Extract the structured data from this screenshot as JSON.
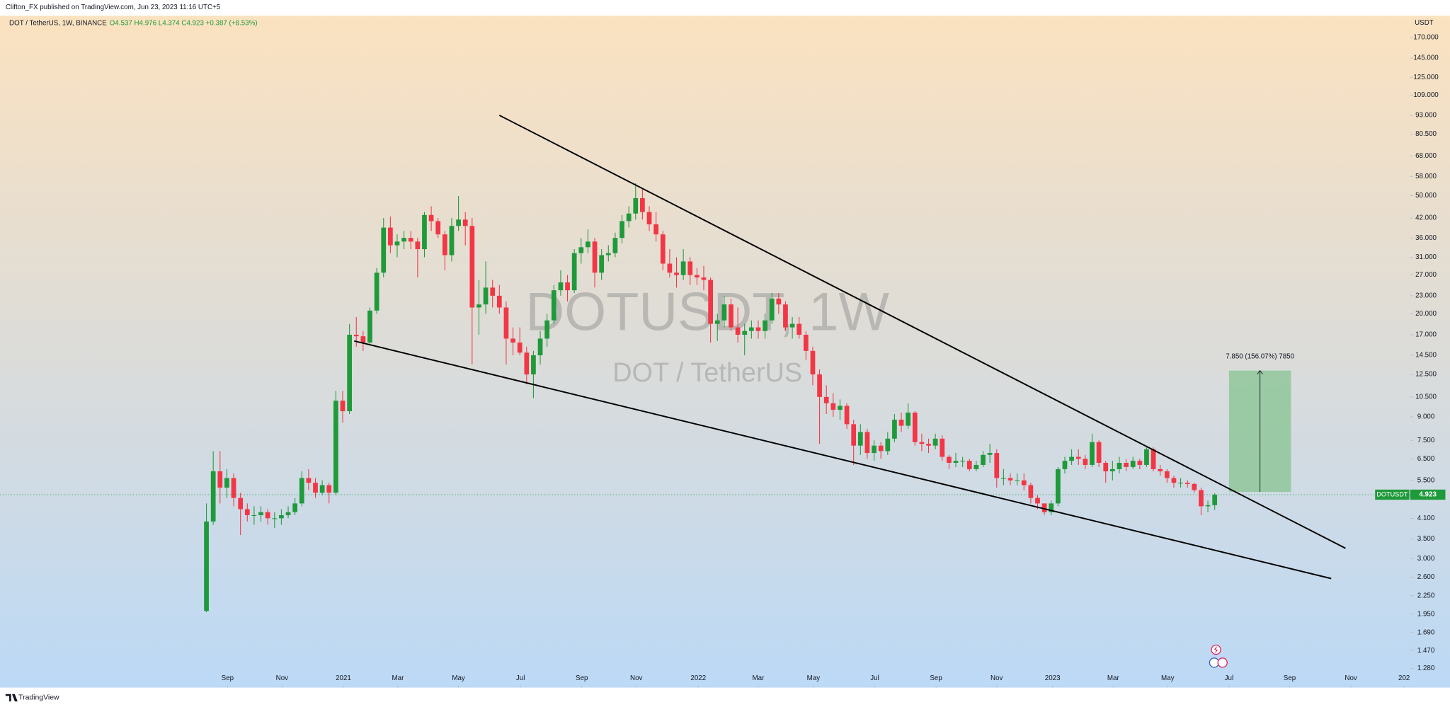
{
  "header": {
    "publisher": "Clifton_FX published on TradingView.com, Jun 23, 2023 11:16 UTC+5"
  },
  "chart_data": {
    "type": "candlestick",
    "title": "DOT / TetherUS, 1W, BINANCE",
    "legend_values": "O4.537 H4.976 L4.374 C4.923 +0.387 (+8.53%)",
    "watermark": "DOTUSDT, 1W",
    "watermark_subtitle": "DOT / TetherUS",
    "currency": "USDT",
    "symbol_tag": "DOTUSDT",
    "up_color": "#1f9a3b",
    "down_color": "#f23645",
    "log_scale": true,
    "grid": false,
    "open": [
      2.0,
      4.0,
      5.9,
      5.2,
      5.6,
      4.8,
      4.4,
      4.2,
      4.2,
      4.3,
      4.1,
      4.1,
      4.2,
      4.3,
      4.6,
      5.6,
      5.4,
      5.0,
      5.3,
      5.0,
      10.2,
      9.4,
      17.0,
      16.8,
      16.0,
      20.5,
      27.5,
      39.0,
      34.0,
      35.0,
      36.0,
      35.0,
      33.0,
      43.0,
      41.0,
      37.0,
      31.5,
      39.5,
      41.5,
      39.5,
      21.0,
      21.5,
      24.5,
      23.0,
      21.0,
      16.5,
      16.0,
      14.8,
      12.5,
      14.5,
      16.5,
      19.0,
      24.0,
      25.5,
      24.0,
      32.0,
      33.5,
      35.0,
      27.5,
      31.5,
      32.0,
      36.0,
      41.0,
      43.5,
      49.0,
      44.0,
      40.0,
      37.0,
      29.5,
      27.5,
      27.0,
      30.0,
      27.0,
      26.5,
      26.0,
      18.5,
      19.0,
      21.5,
      18.0,
      17.0,
      17.5,
      18.0,
      17.5,
      19.0,
      22.5,
      21.5,
      18.0,
      18.5,
      17.0,
      15.0,
      12.5,
      10.5,
      10.0,
      9.5,
      9.8,
      8.5,
      7.2,
      8.0,
      6.8,
      7.2,
      6.9,
      7.6,
      8.8,
      8.4,
      9.3,
      7.4,
      7.3,
      7.2,
      7.6,
      6.6,
      6.3,
      6.4,
      6.4,
      6.0,
      6.2,
      6.7,
      6.8,
      5.6,
      5.6,
      5.5,
      5.5,
      5.3,
      4.8,
      4.6,
      4.3,
      4.6,
      6.0,
      6.4,
      6.6,
      6.5,
      6.2,
      7.4,
      6.3,
      5.9,
      6.0,
      6.3,
      6.1,
      6.4,
      6.2,
      7.0,
      6.0,
      5.9,
      5.6,
      5.4,
      5.4,
      5.35,
      5.1,
      4.5,
      4.537
    ],
    "high": [
      4.6,
      6.9,
      6.9,
      6.0,
      5.8,
      5.0,
      4.6,
      4.5,
      4.5,
      4.4,
      4.3,
      4.4,
      4.5,
      4.8,
      5.9,
      6.0,
      5.6,
      5.5,
      5.4,
      11.0,
      11.0,
      18.5,
      19.5,
      17.5,
      21.0,
      28.5,
      42.0,
      42.5,
      37.0,
      38.0,
      38.0,
      36.0,
      44.0,
      46.0,
      42.0,
      38.0,
      42.0,
      49.8,
      44.0,
      42.0,
      26.0,
      30.0,
      26.0,
      25.0,
      22.0,
      18.0,
      18.0,
      15.5,
      15.0,
      17.5,
      20.0,
      25.0,
      28.0,
      27.0,
      33.0,
      36.0,
      38.5,
      36.0,
      33.0,
      34.0,
      37.5,
      43.0,
      46.0,
      55.0,
      53.0,
      46.0,
      44.0,
      38.0,
      33.0,
      31.0,
      33.0,
      31.0,
      28.5,
      29.0,
      26.5,
      20.0,
      23.0,
      22.5,
      21.0,
      18.5,
      19.0,
      19.0,
      20.0,
      23.5,
      23.5,
      22.0,
      19.5,
      19.5,
      17.5,
      15.5,
      13.0,
      11.5,
      10.8,
      10.3,
      10.0,
      8.8,
      8.5,
      8.2,
      7.5,
      7.4,
      8.0,
      9.2,
      9.3,
      10.0,
      9.4,
      7.9,
      7.6,
      7.9,
      7.8,
      6.7,
      6.8,
      6.6,
      6.5,
      6.4,
      6.9,
      7.3,
      7.0,
      6.0,
      5.8,
      5.8,
      5.8,
      5.4,
      4.9,
      4.6,
      4.7,
      6.1,
      6.6,
      7.0,
      7.0,
      6.7,
      7.9,
      7.5,
      6.4,
      6.4,
      6.6,
      6.5,
      6.6,
      6.5,
      7.2,
      7.1,
      6.2,
      6.0,
      5.7,
      5.6,
      5.5,
      5.4,
      5.2,
      4.7,
      4.976
    ],
    "low": [
      1.98,
      3.9,
      4.6,
      4.8,
      4.5,
      3.6,
      4.0,
      3.9,
      4.0,
      3.9,
      3.8,
      3.9,
      4.1,
      4.2,
      4.5,
      5.1,
      4.8,
      4.9,
      4.6,
      4.9,
      8.6,
      9.2,
      15.5,
      15.0,
      15.8,
      20.0,
      26.5,
      32.0,
      31.0,
      33.0,
      33.0,
      26.5,
      31.0,
      38.0,
      36.0,
      28.0,
      30.0,
      38.0,
      34.0,
      13.5,
      17.0,
      20.0,
      21.0,
      20.0,
      13.5,
      14.5,
      14.5,
      11.6,
      10.4,
      13.5,
      15.5,
      18.5,
      23.0,
      22.0,
      23.5,
      29.5,
      32.0,
      24.5,
      26.0,
      30.0,
      31.0,
      34.5,
      39.0,
      41.5,
      41.5,
      38.0,
      35.0,
      28.0,
      26.5,
      24.5,
      26.0,
      25.0,
      25.0,
      24.0,
      16.0,
      16.2,
      18.0,
      17.5,
      16.0,
      14.5,
      16.5,
      16.5,
      16.5,
      18.5,
      20.0,
      17.5,
      16.5,
      16.5,
      14.0,
      11.5,
      7.3,
      9.2,
      9.0,
      8.8,
      8.2,
      6.2,
      6.7,
      6.5,
      6.4,
      6.5,
      6.7,
      7.4,
      8.0,
      8.2,
      7.2,
      6.9,
      6.8,
      7.0,
      6.4,
      6.0,
      6.1,
      6.1,
      5.9,
      5.9,
      6.1,
      6.3,
      5.2,
      5.3,
      5.3,
      5.3,
      5.1,
      4.6,
      4.4,
      4.2,
      4.2,
      4.5,
      5.8,
      6.2,
      6.2,
      6.0,
      6.1,
      6.1,
      5.4,
      5.5,
      5.8,
      5.9,
      6.0,
      6.0,
      6.1,
      5.9,
      5.7,
      5.4,
      5.2,
      5.2,
      5.2,
      5.0,
      4.2,
      4.3,
      4.374
    ],
    "close": [
      4.0,
      5.9,
      5.2,
      5.6,
      4.8,
      4.4,
      4.2,
      4.2,
      4.3,
      4.1,
      4.1,
      4.2,
      4.3,
      4.6,
      5.6,
      5.4,
      5.0,
      5.3,
      5.0,
      10.2,
      9.4,
      17.0,
      16.8,
      16.0,
      20.5,
      27.5,
      39.0,
      34.0,
      35.0,
      36.0,
      35.0,
      33.0,
      43.0,
      41.0,
      37.0,
      31.5,
      39.5,
      41.5,
      39.5,
      21.0,
      21.5,
      24.5,
      23.0,
      21.0,
      16.5,
      16.0,
      14.8,
      12.5,
      14.5,
      16.5,
      19.0,
      24.0,
      25.5,
      24.0,
      32.0,
      33.5,
      35.0,
      27.5,
      31.5,
      32.0,
      36.0,
      41.0,
      43.5,
      49.0,
      44.0,
      40.0,
      37.0,
      29.5,
      27.5,
      27.0,
      30.0,
      27.0,
      26.5,
      26.0,
      18.5,
      19.0,
      21.5,
      18.0,
      17.0,
      17.5,
      18.0,
      17.5,
      19.0,
      22.5,
      21.5,
      18.0,
      18.5,
      17.0,
      15.0,
      12.5,
      10.5,
      10.0,
      9.5,
      9.8,
      8.5,
      7.2,
      8.0,
      6.8,
      7.2,
      6.9,
      7.6,
      8.8,
      8.4,
      9.3,
      7.4,
      7.3,
      7.2,
      7.6,
      6.6,
      6.3,
      6.4,
      6.4,
      6.0,
      6.2,
      6.7,
      6.8,
      5.6,
      5.6,
      5.5,
      5.5,
      5.3,
      4.8,
      4.6,
      4.3,
      4.6,
      6.0,
      6.4,
      6.6,
      6.5,
      6.2,
      7.4,
      6.3,
      5.9,
      6.0,
      6.3,
      6.1,
      6.4,
      6.2,
      7.0,
      6.0,
      5.9,
      5.6,
      5.4,
      5.4,
      5.35,
      5.1,
      4.5,
      4.537,
      4.923
    ],
    "xlim": [
      -30.3,
      176.7
    ],
    "ylim": [
      1.12,
      200
    ],
    "xticks": [
      {
        "value": 3.1,
        "label": "Sep"
      },
      {
        "value": 11.1,
        "label": "Nov"
      },
      {
        "value": 20.1,
        "label": "2021"
      },
      {
        "value": 28.1,
        "label": "Mar"
      },
      {
        "value": 37.0,
        "label": "May"
      },
      {
        "value": 46.1,
        "label": "Jul"
      },
      {
        "value": 55.1,
        "label": "Sep"
      },
      {
        "value": 63.1,
        "label": "Nov"
      },
      {
        "value": 72.2,
        "label": "2022"
      },
      {
        "value": 81.0,
        "label": "Mar"
      },
      {
        "value": 89.1,
        "label": "May"
      },
      {
        "value": 98.1,
        "label": "Jul"
      },
      {
        "value": 107.1,
        "label": "Sep"
      },
      {
        "value": 116.0,
        "label": "Nov"
      },
      {
        "value": 124.2,
        "label": "2023"
      },
      {
        "value": 133.1,
        "label": "Mar"
      },
      {
        "value": 141.1,
        "label": "May"
      },
      {
        "value": 150.1,
        "label": "Jul"
      },
      {
        "value": 159.0,
        "label": "Sep"
      },
      {
        "value": 168.0,
        "label": "Nov"
      },
      {
        "value": 175.8,
        "label": "202"
      }
    ],
    "yticks": [
      {
        "value": 170,
        "label": "170.000"
      },
      {
        "value": 145,
        "label": "145.000"
      },
      {
        "value": 125,
        "label": "125.000"
      },
      {
        "value": 109,
        "label": "109.000"
      },
      {
        "value": 93,
        "label": "93.000"
      },
      {
        "value": 80.5,
        "label": "80.500"
      },
      {
        "value": 68,
        "label": "68.000"
      },
      {
        "value": 58,
        "label": "58.000"
      },
      {
        "value": 50,
        "label": "50.000"
      },
      {
        "value": 42,
        "label": "42.000"
      },
      {
        "value": 36,
        "label": "36.000"
      },
      {
        "value": 31,
        "label": "31.000"
      },
      {
        "value": 27,
        "label": "27.000"
      },
      {
        "value": 23,
        "label": "23.000"
      },
      {
        "value": 20,
        "label": "20.000"
      },
      {
        "value": 17,
        "label": "17.000"
      },
      {
        "value": 14.5,
        "label": "14.500"
      },
      {
        "value": 12.5,
        "label": "12.500"
      },
      {
        "value": 10.5,
        "label": "10.500"
      },
      {
        "value": 9,
        "label": "9.000"
      },
      {
        "value": 7.5,
        "label": "7.500"
      },
      {
        "value": 6.5,
        "label": "6.500"
      },
      {
        "value": 5.5,
        "label": "5.500"
      },
      {
        "value": 4.1,
        "label": "4.100"
      },
      {
        "value": 3.5,
        "label": "3.500"
      },
      {
        "value": 3.0,
        "label": "3.000"
      },
      {
        "value": 2.6,
        "label": "2.600"
      },
      {
        "value": 2.25,
        "label": "2.250"
      },
      {
        "value": 1.95,
        "label": "1.950"
      },
      {
        "value": 1.69,
        "label": "1.690"
      },
      {
        "value": 1.47,
        "label": "1.470"
      },
      {
        "value": 1.28,
        "label": "1.280"
      }
    ],
    "trendlines": [
      {
        "x": [
          43.0,
          167.2
        ],
        "y": [
          93.1,
          3.25
        ]
      },
      {
        "x": [
          21.7,
          165.1
        ],
        "y": [
          16.2,
          2.57
        ]
      }
    ],
    "projection": {
      "x": [
        150.1,
        159.2
      ],
      "y": [
        5.03,
        12.88
      ],
      "label": "7.850 (156.07%) 7850",
      "color": "#8fc79a"
    }
  },
  "footer": {
    "brand": "TradingView"
  }
}
